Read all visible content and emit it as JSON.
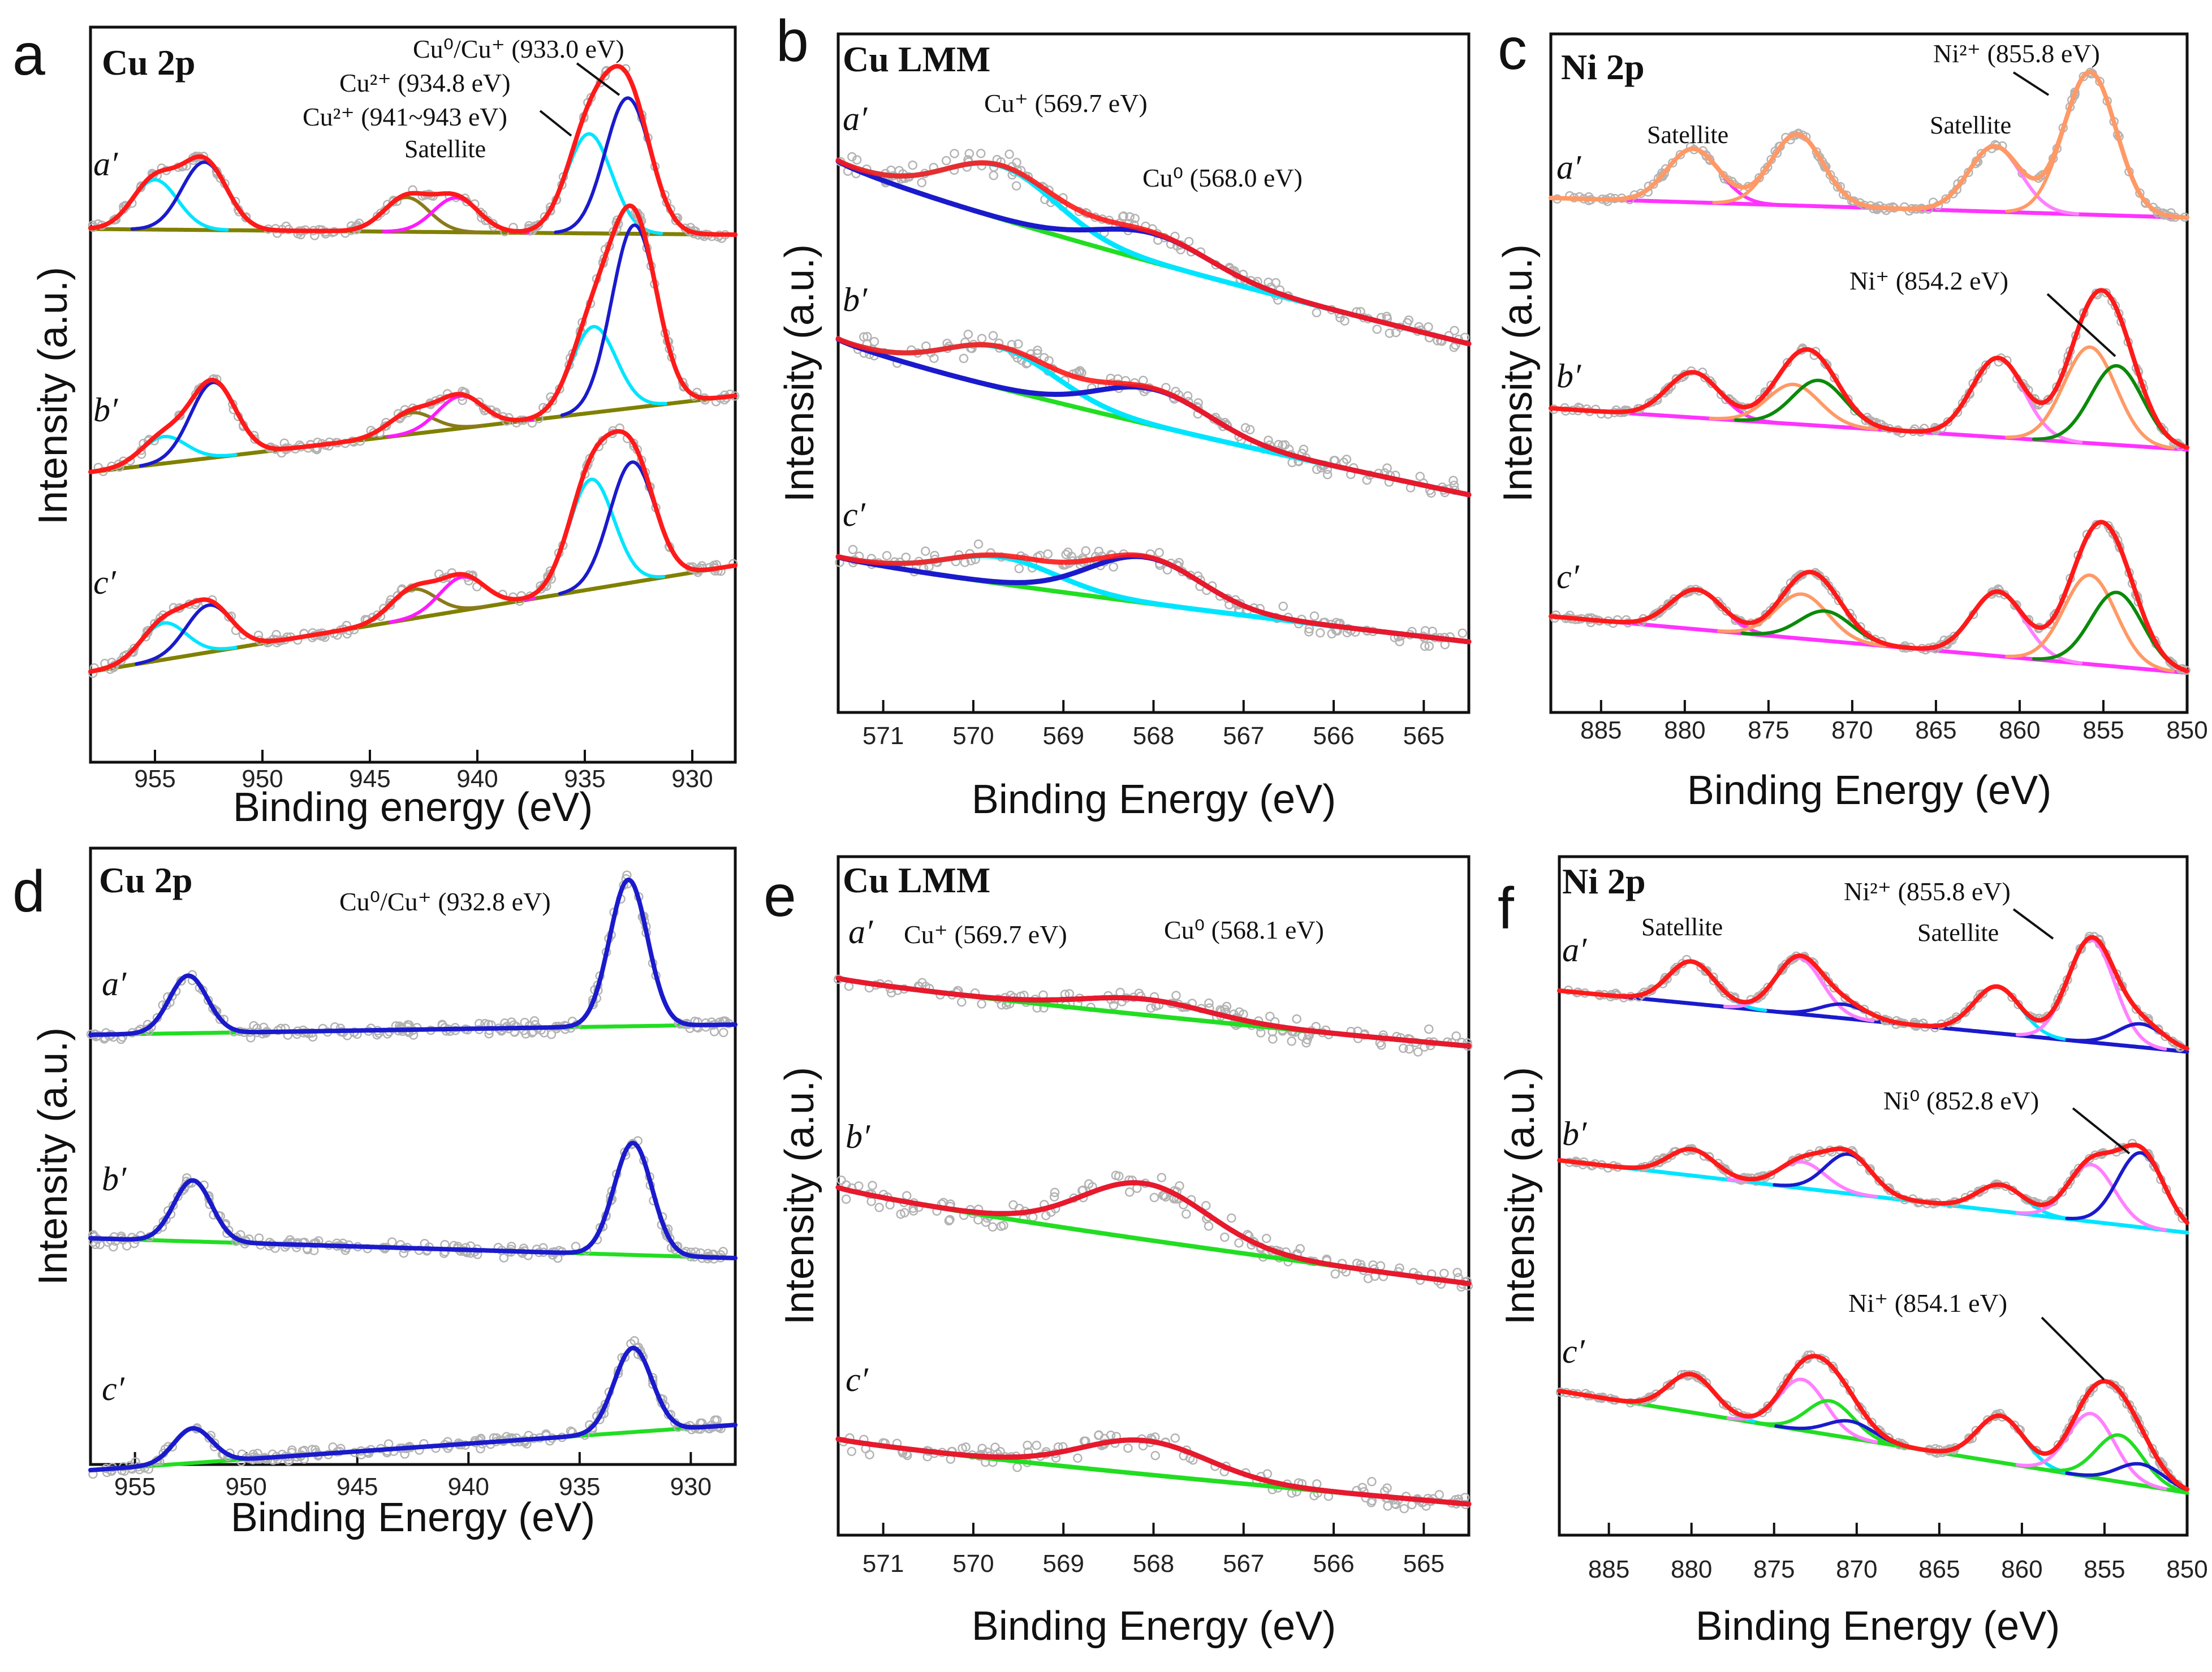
{
  "figure": {
    "colors": {
      "envelope": "#ff1a1a",
      "cu_metal": "#1a1acc",
      "cu_ox": "#00e5ff",
      "satellite_a": "#8b7a1a",
      "satellite_b": "#ff1aff",
      "background": "#808000",
      "green_bg": "#22dd22",
      "ni_sat": "#ff33ff",
      "ni_peak": "#ff9966",
      "ni_dark": "#0a8a0a",
      "ni_light": "#ff80ff",
      "data_points": "#b3b3b3"
    }
  },
  "chart_data": [
    {
      "id": "a",
      "panel_letter": "a",
      "type": "line",
      "title": "Cu 2p",
      "xlabel": "Binding energy (eV)",
      "ylabel": "Intensity (a.u.)",
      "xlim": [
        958,
        928
      ],
      "xticks": [
        955,
        950,
        945,
        940,
        935,
        930
      ],
      "xtick_labels": [
        "955",
        "950",
        "945",
        "940",
        "935",
        "930"
      ],
      "traces": [
        "a′",
        "b′",
        "c′"
      ],
      "annotations": [
        "Cu⁰/Cu⁺ (933.0 eV)",
        "Cu²⁺ (934.8 eV)",
        "Cu²⁺ (941~943 eV)",
        "Satellite"
      ],
      "series": [
        {
          "name": "a′ envelope",
          "peaks": [
            [
              955.0,
              0.55
            ],
            [
              952.7,
              0.75
            ],
            [
              943.3,
              0.38
            ],
            [
              941.0,
              0.38
            ],
            [
              934.8,
              1.1
            ],
            [
              933.0,
              1.5
            ]
          ]
        },
        {
          "name": "b′ envelope",
          "peaks": [
            [
              954.6,
              0.25
            ],
            [
              952.3,
              0.7
            ],
            [
              943.1,
              0.2
            ],
            [
              940.8,
              0.3
            ],
            [
              934.6,
              0.8
            ],
            [
              932.7,
              1.7
            ]
          ]
        },
        {
          "name": "c′ envelope",
          "peaks": [
            [
              954.6,
              0.35
            ],
            [
              952.5,
              0.45
            ],
            [
              943.0,
              0.28
            ],
            [
              940.7,
              0.32
            ],
            [
              934.7,
              1.05
            ],
            [
              932.8,
              1.15
            ]
          ]
        }
      ]
    },
    {
      "id": "b",
      "panel_letter": "b",
      "type": "line",
      "title": "Cu LMM",
      "xlabel": "Binding Energy (eV)",
      "ylabel": "Intensity (a.u.)",
      "xlim": [
        571.5,
        564.5
      ],
      "xticks": [
        571,
        570,
        569,
        568,
        567,
        566,
        565
      ],
      "xtick_labels": [
        "571",
        "570",
        "569",
        "568",
        "567",
        "566",
        "565"
      ],
      "traces": [
        "a′",
        "b′",
        "c′"
      ],
      "annotations": [
        "Cu⁺ (569.7 eV)",
        "Cu⁰ (568.0 eV)"
      ],
      "series": [
        {
          "name": "a′ Cu+",
          "center": 569.7,
          "amp": 0.55
        },
        {
          "name": "a′ Cu0",
          "center": 568.0,
          "amp": 0.3
        },
        {
          "name": "b′ Cu+",
          "center": 569.7,
          "amp": 0.45
        },
        {
          "name": "b′ Cu0",
          "center": 568.0,
          "amp": 0.4
        },
        {
          "name": "c′ Cu+",
          "center": 569.7,
          "amp": 0.35
        },
        {
          "name": "c′ Cu0",
          "center": 568.1,
          "amp": 0.6
        }
      ]
    },
    {
      "id": "c",
      "panel_letter": "c",
      "type": "line",
      "title": "Ni 2p",
      "xlabel": "Binding Energy (eV)",
      "ylabel": "Intensity (a.u.)",
      "xlim": [
        888,
        850
      ],
      "xticks": [
        885,
        880,
        875,
        870,
        865,
        860,
        855,
        850
      ],
      "xtick_labels": [
        "885",
        "880",
        "875",
        "870",
        "865",
        "860",
        "855",
        "850"
      ],
      "traces": [
        "a′",
        "b′",
        "c′"
      ],
      "annotations": [
        "Satellite",
        "Satellite",
        "Ni²⁺ (855.8 eV)",
        "Ni⁺ (854.2 eV)"
      ],
      "series": [
        {
          "name": "a′ envelope",
          "peaks": [
            [
              879.5,
              0.45
            ],
            [
              873.3,
              0.6
            ],
            [
              861.5,
              0.55
            ],
            [
              855.8,
              1.2
            ]
          ]
        },
        {
          "name": "b′ envelope",
          "peaks": [
            [
              879.5,
              0.4
            ],
            [
              873.5,
              0.35
            ],
            [
              872.0,
              0.4
            ],
            [
              861.3,
              0.7
            ],
            [
              855.8,
              0.85
            ],
            [
              854.2,
              0.7
            ]
          ]
        },
        {
          "name": "c′ envelope",
          "peaks": [
            [
              879.3,
              0.4
            ],
            [
              873.0,
              0.45
            ],
            [
              871.6,
              0.3
            ],
            [
              861.3,
              0.65
            ],
            [
              855.8,
              0.9
            ],
            [
              854.2,
              0.75
            ]
          ]
        }
      ]
    },
    {
      "id": "d",
      "panel_letter": "d",
      "type": "line",
      "title": "Cu 2p",
      "xlabel": "Binding Energy (eV)",
      "ylabel": "Intensity (a.u.)",
      "xlim": [
        957,
        928
      ],
      "xticks": [
        955,
        950,
        945,
        940,
        935,
        930
      ],
      "xtick_labels": [
        "955",
        "950",
        "945",
        "940",
        "935",
        "930"
      ],
      "traces": [
        "a′",
        "b′",
        "c′"
      ],
      "annotations": [
        "Cu⁰/Cu⁺ (932.8 eV)"
      ],
      "series": [
        {
          "name": "a′ Cu0/Cu+",
          "peaks": [
            [
              952.6,
              0.55
            ],
            [
              932.8,
              1.4
            ]
          ]
        },
        {
          "name": "b′ Cu0/Cu+",
          "peaks": [
            [
              952.4,
              0.6
            ],
            [
              932.6,
              1.1
            ]
          ]
        },
        {
          "name": "c′ Cu0/Cu+",
          "peaks": [
            [
              952.4,
              0.35
            ],
            [
              932.6,
              0.85
            ]
          ]
        }
      ]
    },
    {
      "id": "e",
      "panel_letter": "e",
      "type": "line",
      "title": "Cu LMM",
      "xlabel": "Binding Energy (eV)",
      "ylabel": "Intensity (a.u.)",
      "xlim": [
        571.5,
        564.5
      ],
      "xticks": [
        571,
        570,
        569,
        568,
        567,
        566,
        565
      ],
      "xtick_labels": [
        "571",
        "570",
        "569",
        "568",
        "567",
        "566",
        "565"
      ],
      "traces": [
        "a′",
        "b′",
        "c′"
      ],
      "annotations": [
        "Cu⁺ (569.7 eV)",
        "Cu⁰ (568.1 eV)"
      ],
      "series": [
        {
          "name": "a′ Cu0",
          "center": 568.1,
          "amp": 0.2
        },
        {
          "name": "b′ Cu0",
          "center": 568.1,
          "amp": 0.55
        },
        {
          "name": "c′ Cu0",
          "center": 568.1,
          "amp": 0.35
        }
      ]
    },
    {
      "id": "f",
      "panel_letter": "f",
      "type": "line",
      "title": "Ni 2p",
      "xlabel": "Binding Energy (eV)",
      "ylabel": "Intensity (a.u.)",
      "xlim": [
        888,
        850
      ],
      "xticks": [
        885,
        880,
        875,
        870,
        865,
        860,
        855,
        850
      ],
      "xtick_labels": [
        "885",
        "880",
        "875",
        "870",
        "865",
        "860",
        "855",
        "850"
      ],
      "traces": [
        "a′",
        "b′",
        "c′"
      ],
      "annotations": [
        "Satellite",
        "Satellite",
        "Ni²⁺ (855.8 eV)",
        "Ni⁰ (852.8 eV)",
        "Ni⁺ (854.1 eV)"
      ],
      "series": [
        {
          "name": "a′ envelope",
          "peaks": [
            [
              880.0,
              0.45
            ],
            [
              873.5,
              0.6
            ],
            [
              870.8,
              0.15
            ],
            [
              861.5,
              0.5
            ],
            [
              855.8,
              1.1
            ],
            [
              852.8,
              0.25
            ]
          ]
        },
        {
          "name": "b′ envelope",
          "peaks": [
            [
              880.0,
              0.3
            ],
            [
              873.3,
              0.3
            ],
            [
              870.5,
              0.45
            ],
            [
              861.3,
              0.3
            ],
            [
              855.8,
              0.65
            ],
            [
              852.8,
              0.85
            ]
          ]
        },
        {
          "name": "c′ envelope",
          "peaks": [
            [
              880.0,
              0.45
            ],
            [
              873.3,
              0.6
            ],
            [
              871.6,
              0.4
            ],
            [
              870.4,
              0.2
            ],
            [
              861.3,
              0.55
            ],
            [
              855.8,
              0.75
            ],
            [
              854.1,
              0.55
            ],
            [
              852.8,
              0.25
            ]
          ]
        }
      ]
    }
  ]
}
